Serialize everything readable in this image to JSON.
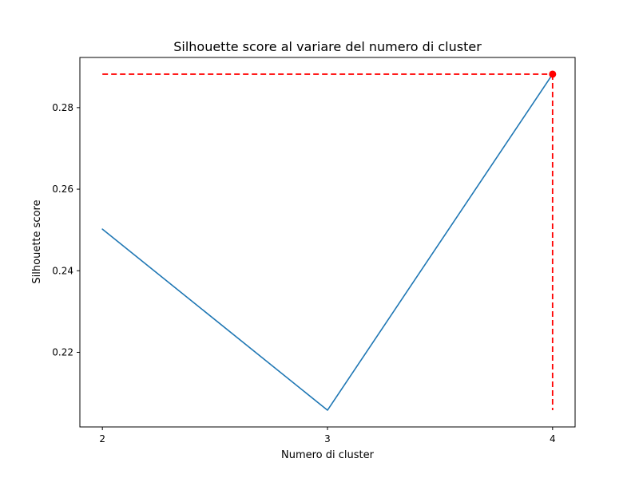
{
  "chart_data": {
    "type": "line",
    "title": "Silhouette score al variare del numero di cluster",
    "xlabel": "Numero di cluster",
    "ylabel": "Silhouette score",
    "x": [
      2,
      3,
      4
    ],
    "series": [
      {
        "values": [
          0.2502,
          0.2058,
          0.2882
        ],
        "color": "#1f77b4"
      }
    ],
    "highlight": {
      "x": 4,
      "y": 0.2882,
      "color": "#ff0000",
      "guides": "dashed"
    },
    "xticks": [
      2,
      3,
      4
    ],
    "xtick_labels": [
      "2",
      "3",
      "4"
    ],
    "yticks": [
      0.22,
      0.24,
      0.26,
      0.28
    ],
    "ytick_labels": [
      "0.22",
      "0.24",
      "0.26",
      "0.28"
    ],
    "xlim": [
      1.9,
      4.1
    ],
    "ylim": [
      0.2017,
      0.2923
    ],
    "grid": false,
    "legend": "none"
  }
}
